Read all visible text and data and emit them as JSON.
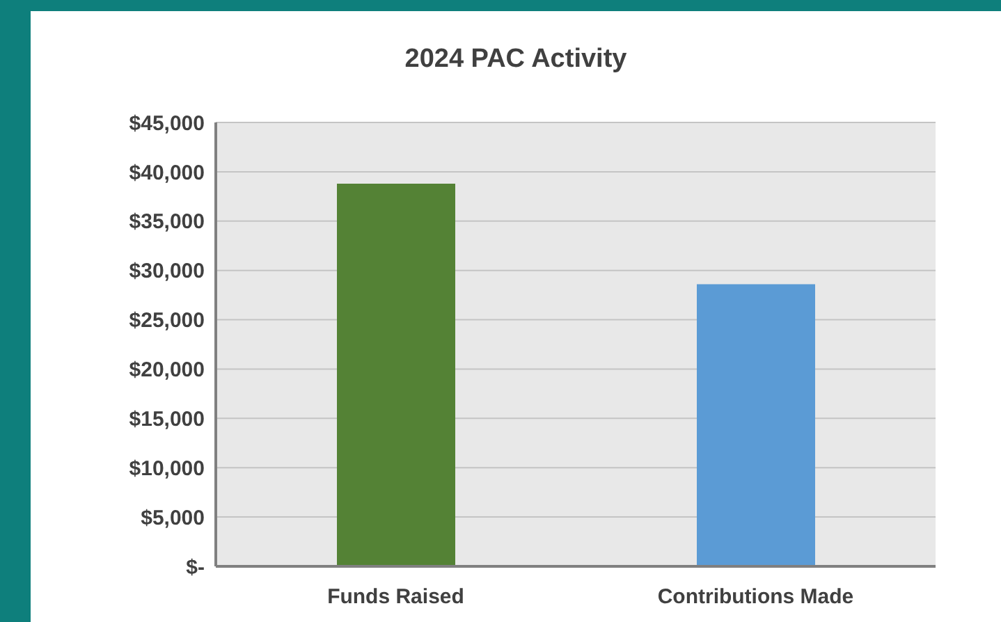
{
  "chart_data": {
    "type": "bar",
    "title": "2024 PAC Activity",
    "categories": [
      "Funds Raised",
      "Contributions Made"
    ],
    "values": [
      38800,
      28600
    ],
    "colors": [
      "#548235",
      "#5b9bd5"
    ],
    "ylim": [
      0,
      45000
    ],
    "yticks": [
      {
        "value": 0,
        "label": "$-"
      },
      {
        "value": 5000,
        "label": "$5,000"
      },
      {
        "value": 10000,
        "label": "$10,000"
      },
      {
        "value": 15000,
        "label": "$15,000"
      },
      {
        "value": 20000,
        "label": "$20,000"
      },
      {
        "value": 25000,
        "label": "$25,000"
      },
      {
        "value": 30000,
        "label": "$30,000"
      },
      {
        "value": 35000,
        "label": "$35,000"
      },
      {
        "value": 40000,
        "label": "$40,000"
      },
      {
        "value": 45000,
        "label": "$45,000"
      }
    ],
    "grid": "y"
  }
}
